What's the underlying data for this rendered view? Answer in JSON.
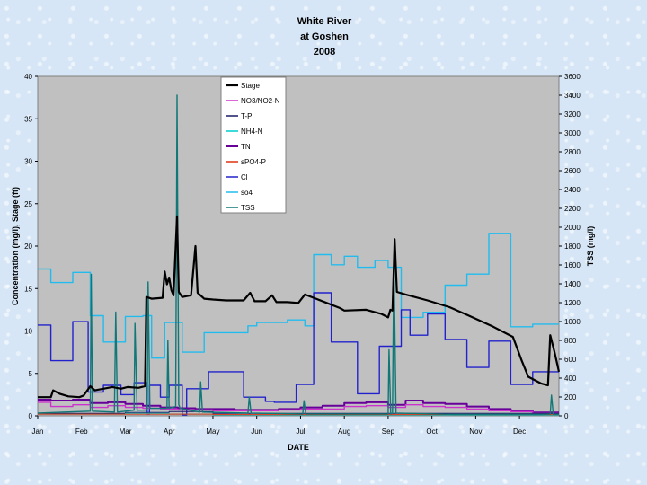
{
  "chart_data": {
    "type": "line",
    "title_lines": [
      "White River",
      "at Goshen",
      "2008"
    ],
    "xlabel": "DATE",
    "ylabel_left": "Concentration (mg/l), Stage (ft)",
    "ylabel_right": "TSS (mg/l)",
    "x_categories": [
      "Jan",
      "Feb",
      "Mar",
      "Apr",
      "May",
      "Jun",
      "Jul",
      "Aug",
      "Sep",
      "Oct",
      "Nov",
      "Dec"
    ],
    "ylim_left": [
      0,
      40
    ],
    "yticks_left": [
      "0",
      "5",
      "10",
      "15",
      "20",
      "25",
      "30",
      "35",
      "40"
    ],
    "ylim_right": [
      0,
      3600
    ],
    "yticks_right": [
      "0",
      "200",
      "400",
      "600",
      "800",
      "1000",
      "1200",
      "1400",
      "1600",
      "1800",
      "2000",
      "2200",
      "2400",
      "2600",
      "2800",
      "3000",
      "3200",
      "3400",
      "3600"
    ],
    "grid": false,
    "legend_position": "top-center",
    "series": [
      {
        "name": "Stage",
        "color": "#000000",
        "width": 2.2,
        "axis": "left",
        "type": "line",
        "points": [
          [
            0,
            2.2
          ],
          [
            0.3,
            2.2
          ],
          [
            0.35,
            3.0
          ],
          [
            0.5,
            2.6
          ],
          [
            0.7,
            2.3
          ],
          [
            0.95,
            2.2
          ],
          [
            1.05,
            2.4
          ],
          [
            1.2,
            3.5
          ],
          [
            1.3,
            3.0
          ],
          [
            1.5,
            3.2
          ],
          [
            1.7,
            3.4
          ],
          [
            1.9,
            3.2
          ],
          [
            2.05,
            3.4
          ],
          [
            2.3,
            3.3
          ],
          [
            2.45,
            3.5
          ],
          [
            2.48,
            14.0
          ],
          [
            2.6,
            13.8
          ],
          [
            2.85,
            13.9
          ],
          [
            2.9,
            17.0
          ],
          [
            2.95,
            15.5
          ],
          [
            3.0,
            16.3
          ],
          [
            3.05,
            14.8
          ],
          [
            3.1,
            14.2
          ],
          [
            3.18,
            23.5
          ],
          [
            3.22,
            14.6
          ],
          [
            3.3,
            14.0
          ],
          [
            3.5,
            14.2
          ],
          [
            3.6,
            20.0
          ],
          [
            3.65,
            14.5
          ],
          [
            3.8,
            13.8
          ],
          [
            4.0,
            13.7
          ],
          [
            4.3,
            13.6
          ],
          [
            4.7,
            13.6
          ],
          [
            4.85,
            14.5
          ],
          [
            4.95,
            13.5
          ],
          [
            5.2,
            13.5
          ],
          [
            5.35,
            14.2
          ],
          [
            5.45,
            13.4
          ],
          [
            5.7,
            13.4
          ],
          [
            5.95,
            13.3
          ],
          [
            6.1,
            14.3
          ],
          [
            6.3,
            13.9
          ],
          [
            6.6,
            13.3
          ],
          [
            6.9,
            12.7
          ],
          [
            7.0,
            12.4
          ],
          [
            7.5,
            12.5
          ],
          [
            7.85,
            12.0
          ],
          [
            8.0,
            11.6
          ],
          [
            8.05,
            12.5
          ],
          [
            8.1,
            12.4
          ],
          [
            8.15,
            20.8
          ],
          [
            8.2,
            14.6
          ],
          [
            8.4,
            14.3
          ],
          [
            8.9,
            13.6
          ],
          [
            9.4,
            12.8
          ],
          [
            9.8,
            11.9
          ],
          [
            10.4,
            10.5
          ],
          [
            10.85,
            9.3
          ],
          [
            11.05,
            6.5
          ],
          [
            11.2,
            4.6
          ],
          [
            11.5,
            3.8
          ],
          [
            11.65,
            3.6
          ],
          [
            11.7,
            9.5
          ],
          [
            11.8,
            7.5
          ],
          [
            11.9,
            5.2
          ]
        ]
      },
      {
        "name": "NO3/NO2-N",
        "color": "#cc33cc",
        "width": 1.4,
        "axis": "left",
        "type": "step",
        "points": [
          [
            0,
            1.6
          ],
          [
            0.3,
            1.1
          ],
          [
            0.8,
            1.3
          ],
          [
            1.2,
            1.0
          ],
          [
            1.6,
            1.2
          ],
          [
            2.0,
            1.0
          ],
          [
            2.4,
            0.9
          ],
          [
            2.8,
            0.8
          ],
          [
            3.2,
            0.7
          ],
          [
            3.6,
            0.7
          ],
          [
            4.0,
            0.6
          ],
          [
            4.5,
            0.6
          ],
          [
            5.0,
            0.6
          ],
          [
            5.5,
            0.7
          ],
          [
            6.0,
            0.8
          ],
          [
            6.5,
            0.8
          ],
          [
            7.0,
            1.1
          ],
          [
            7.5,
            1.2
          ],
          [
            8.0,
            1.0
          ],
          [
            8.4,
            1.3
          ],
          [
            8.8,
            1.1
          ],
          [
            9.3,
            1.0
          ],
          [
            9.8,
            0.8
          ],
          [
            10.3,
            0.6
          ],
          [
            10.8,
            0.5
          ],
          [
            11.3,
            0.3
          ],
          [
            11.9,
            0.3
          ]
        ]
      },
      {
        "name": "T-P",
        "color": "#1a1a66",
        "width": 1,
        "axis": "left",
        "type": "step",
        "points": [
          [
            0,
            0.3
          ],
          [
            1,
            0.3
          ],
          [
            2,
            0.4
          ],
          [
            3,
            0.5
          ],
          [
            4,
            0.3
          ],
          [
            5,
            0.3
          ],
          [
            6,
            0.3
          ],
          [
            7,
            0.3
          ],
          [
            8,
            0.3
          ],
          [
            9,
            0.3
          ],
          [
            10,
            0.3
          ],
          [
            11,
            0.3
          ],
          [
            11.9,
            0.3
          ]
        ]
      },
      {
        "name": "NH4-N",
        "color": "#00cccc",
        "width": 1,
        "axis": "left",
        "type": "step",
        "points": [
          [
            0,
            0.2
          ],
          [
            1,
            0.2
          ],
          [
            2,
            0.3
          ],
          [
            3,
            0.2
          ],
          [
            4,
            0.1
          ],
          [
            5,
            0.1
          ],
          [
            6,
            0.1
          ],
          [
            7,
            0.1
          ],
          [
            8,
            0.1
          ],
          [
            9,
            0.1
          ],
          [
            10,
            0.1
          ],
          [
            11,
            0.1
          ],
          [
            11.9,
            0.1
          ]
        ]
      },
      {
        "name": "TN",
        "color": "#660099",
        "width": 2,
        "axis": "left",
        "type": "step",
        "points": [
          [
            0,
            1.9
          ],
          [
            0.3,
            1.8
          ],
          [
            0.8,
            1.9
          ],
          [
            1.2,
            1.5
          ],
          [
            1.6,
            1.6
          ],
          [
            2.0,
            1.4
          ],
          [
            2.4,
            1.2
          ],
          [
            2.8,
            1.0
          ],
          [
            3.2,
            0.9
          ],
          [
            3.6,
            0.8
          ],
          [
            4.0,
            0.8
          ],
          [
            4.5,
            0.7
          ],
          [
            5.0,
            0.7
          ],
          [
            5.5,
            0.8
          ],
          [
            6.0,
            1.0
          ],
          [
            6.5,
            1.2
          ],
          [
            7.0,
            1.5
          ],
          [
            7.5,
            1.6
          ],
          [
            8.0,
            1.3
          ],
          [
            8.4,
            1.8
          ],
          [
            8.8,
            1.5
          ],
          [
            9.3,
            1.4
          ],
          [
            9.8,
            1.1
          ],
          [
            10.3,
            0.8
          ],
          [
            10.8,
            0.6
          ],
          [
            11.3,
            0.4
          ],
          [
            11.9,
            0.4
          ]
        ]
      },
      {
        "name": "sPO4-P",
        "color": "#dd3311",
        "width": 1,
        "axis": "left",
        "type": "step",
        "points": [
          [
            0,
            0.2
          ],
          [
            2,
            0.2
          ],
          [
            4,
            0.15
          ],
          [
            6,
            0.15
          ],
          [
            8,
            0.15
          ],
          [
            10,
            0.15
          ],
          [
            11.9,
            0.15
          ]
        ]
      },
      {
        "name": "Cl",
        "color": "#2222cc",
        "width": 1.4,
        "axis": "left",
        "type": "step",
        "points": [
          [
            0,
            10.7
          ],
          [
            0.3,
            6.5
          ],
          [
            0.8,
            11.1
          ],
          [
            1.15,
            2.8
          ],
          [
            1.5,
            3.6
          ],
          [
            1.9,
            2.5
          ],
          [
            2.2,
            3.9
          ],
          [
            2.5,
            0.2
          ],
          [
            2.55,
            3.6
          ],
          [
            2.8,
            2.2
          ],
          [
            3.0,
            3.6
          ],
          [
            3.3,
            0.1
          ],
          [
            3.4,
            3.2
          ],
          [
            3.9,
            5.2
          ],
          [
            4.7,
            2.2
          ],
          [
            5.2,
            1.7
          ],
          [
            5.4,
            1.6
          ],
          [
            5.9,
            3.7
          ],
          [
            6.3,
            14.5
          ],
          [
            6.7,
            8.7
          ],
          [
            7.3,
            2.6
          ],
          [
            7.8,
            8.2
          ],
          [
            8.3,
            12.5
          ],
          [
            8.5,
            9.5
          ],
          [
            8.9,
            12.0
          ],
          [
            9.3,
            9.0
          ],
          [
            9.8,
            5.7
          ],
          [
            10.3,
            8.8
          ],
          [
            10.8,
            3.7
          ],
          [
            11.3,
            5.2
          ],
          [
            11.9,
            5.2
          ]
        ]
      },
      {
        "name": "so4",
        "color": "#22bbee",
        "width": 1.4,
        "axis": "left",
        "type": "step",
        "points": [
          [
            0,
            17.3
          ],
          [
            0.3,
            15.7
          ],
          [
            0.8,
            16.9
          ],
          [
            1.2,
            11.8
          ],
          [
            1.5,
            8.7
          ],
          [
            2.0,
            11.7
          ],
          [
            2.4,
            11.8
          ],
          [
            2.6,
            6.8
          ],
          [
            2.9,
            11.0
          ],
          [
            3.3,
            7.5
          ],
          [
            3.8,
            9.8
          ],
          [
            4.2,
            9.8
          ],
          [
            4.8,
            10.6
          ],
          [
            5.0,
            11.0
          ],
          [
            5.7,
            11.3
          ],
          [
            6.1,
            10.6
          ],
          [
            6.3,
            19.0
          ],
          [
            6.7,
            17.8
          ],
          [
            7.0,
            18.8
          ],
          [
            7.3,
            17.5
          ],
          [
            7.7,
            18.3
          ],
          [
            8.0,
            17.5
          ],
          [
            8.3,
            11.6
          ],
          [
            8.8,
            12.2
          ],
          [
            9.3,
            15.4
          ],
          [
            9.8,
            16.7
          ],
          [
            10.3,
            21.5
          ],
          [
            10.8,
            10.5
          ],
          [
            11.3,
            10.8
          ],
          [
            11.9,
            10.8
          ]
        ]
      },
      {
        "name": "TSS",
        "color": "#117777",
        "width": 1.4,
        "axis": "right",
        "type": "spikes",
        "points": [
          [
            0,
            30
          ],
          [
            1.2,
            50
          ],
          [
            1.22,
            1500
          ],
          [
            1.25,
            50
          ],
          [
            1.75,
            40
          ],
          [
            1.78,
            1100
          ],
          [
            1.82,
            40
          ],
          [
            2.2,
            60
          ],
          [
            2.22,
            980
          ],
          [
            2.27,
            60
          ],
          [
            2.5,
            60
          ],
          [
            2.52,
            1420
          ],
          [
            2.56,
            80
          ],
          [
            2.95,
            80
          ],
          [
            2.97,
            800
          ],
          [
            3.0,
            80
          ],
          [
            3.15,
            100
          ],
          [
            3.18,
            3400
          ],
          [
            3.22,
            120
          ],
          [
            3.25,
            80
          ],
          [
            3.7,
            40
          ],
          [
            3.72,
            360
          ],
          [
            3.76,
            40
          ],
          [
            4.8,
            30
          ],
          [
            4.83,
            200
          ],
          [
            4.87,
            30
          ],
          [
            6.05,
            20
          ],
          [
            6.08,
            160
          ],
          [
            6.12,
            20
          ],
          [
            8.0,
            20
          ],
          [
            8.02,
            700
          ],
          [
            8.06,
            20
          ],
          [
            8.1,
            30
          ],
          [
            8.13,
            1700
          ],
          [
            8.18,
            30
          ],
          [
            9.5,
            15
          ],
          [
            11.5,
            15
          ],
          [
            11.7,
            20
          ],
          [
            11.73,
            220
          ],
          [
            11.77,
            15
          ],
          [
            11.9,
            15
          ]
        ]
      }
    ]
  }
}
